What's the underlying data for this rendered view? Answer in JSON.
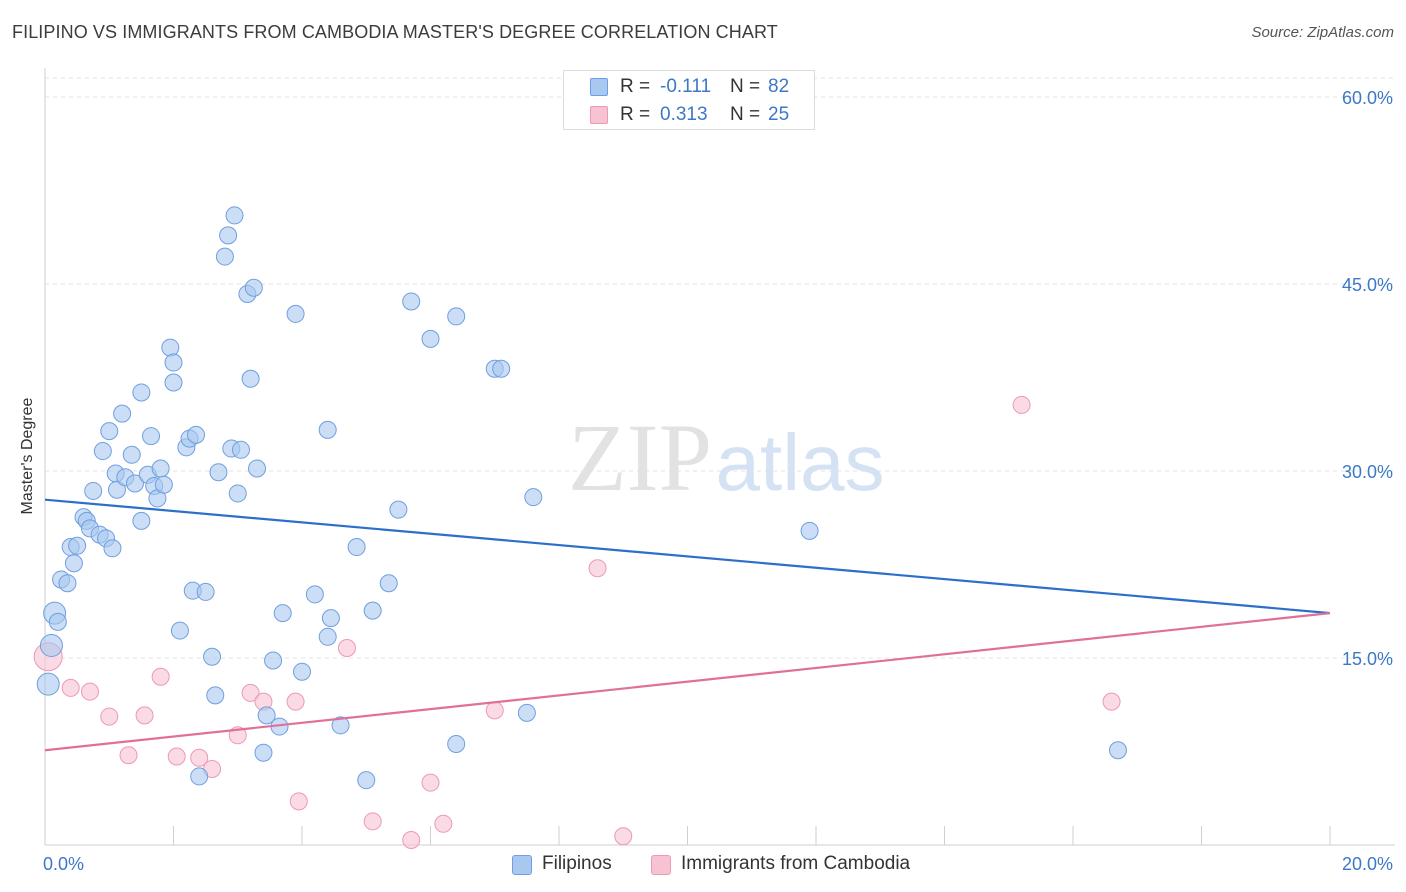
{
  "title": "FILIPINO VS IMMIGRANTS FROM CAMBODIA MASTER'S DEGREE CORRELATION CHART",
  "source": "Source: ZipAtlas.com",
  "watermark": {
    "zip": "ZIP",
    "atlas": "atlas"
  },
  "colors": {
    "filipinos_fill": "#a9c8f0",
    "filipinos_stroke": "#6f9fe0",
    "filipinos_line": "#2c6fcb",
    "cambodia_fill": "#f7c3d3",
    "cambodia_stroke": "#ef98b4",
    "cambodia_line": "#e0709a",
    "tick_label": "#3d78c6",
    "grid": "#e3e3e3"
  },
  "legend_top": {
    "rows": [
      {
        "r_label": "R =",
        "r_value": "-0.111",
        "n_label": "N =",
        "n_value": "82"
      },
      {
        "r_label": "R =",
        "r_value": "0.313",
        "n_label": "N =",
        "n_value": "25"
      }
    ]
  },
  "legend_bottom": {
    "series": [
      "Filipinos",
      "Immigrants from Cambodia"
    ]
  },
  "chart_data": {
    "type": "scatter",
    "title": "FILIPINO VS IMMIGRANTS FROM CAMBODIA MASTER'S DEGREE CORRELATION CHART",
    "xlabel": "",
    "ylabel": "Master's Degree",
    "xlim": [
      0,
      20
    ],
    "ylim": [
      0,
      60
    ],
    "x_ticks": [
      "0.0%",
      "20.0%"
    ],
    "y_ticks": [
      {
        "value": 15,
        "label": "15.0%"
      },
      {
        "value": 30,
        "label": "30.0%"
      },
      {
        "value": 45,
        "label": "45.0%"
      },
      {
        "value": 60,
        "label": "60.0%"
      }
    ],
    "grid": true,
    "legend_position": "top-center",
    "series": [
      {
        "name": "Filipinos",
        "trend": {
          "x": [
            0,
            20
          ],
          "y": [
            27.7,
            18.6
          ]
        },
        "points": [
          [
            0.05,
            12.9
          ],
          [
            0.1,
            16.0
          ],
          [
            0.15,
            18.6
          ],
          [
            0.2,
            17.9
          ],
          [
            0.25,
            21.3
          ],
          [
            0.35,
            21.0
          ],
          [
            0.4,
            23.9
          ],
          [
            0.45,
            22.6
          ],
          [
            0.5,
            24.0
          ],
          [
            0.6,
            26.3
          ],
          [
            0.65,
            26.0
          ],
          [
            0.7,
            25.4
          ],
          [
            0.75,
            28.4
          ],
          [
            0.85,
            24.9
          ],
          [
            0.9,
            31.6
          ],
          [
            0.95,
            24.6
          ],
          [
            1.0,
            33.2
          ],
          [
            1.05,
            23.8
          ],
          [
            1.1,
            29.8
          ],
          [
            1.12,
            28.5
          ],
          [
            1.2,
            34.6
          ],
          [
            1.25,
            29.5
          ],
          [
            1.35,
            31.3
          ],
          [
            1.4,
            29.0
          ],
          [
            1.5,
            26.0
          ],
          [
            1.5,
            36.3
          ],
          [
            1.6,
            29.7
          ],
          [
            1.65,
            32.8
          ],
          [
            1.7,
            28.8
          ],
          [
            1.75,
            27.8
          ],
          [
            1.8,
            30.2
          ],
          [
            1.85,
            28.9
          ],
          [
            1.95,
            39.9
          ],
          [
            2.0,
            37.1
          ],
          [
            2.0,
            38.7
          ],
          [
            2.1,
            17.2
          ],
          [
            2.2,
            31.9
          ],
          [
            2.25,
            32.6
          ],
          [
            2.3,
            20.4
          ],
          [
            2.35,
            32.9
          ],
          [
            2.5,
            20.3
          ],
          [
            2.6,
            15.1
          ],
          [
            2.65,
            12.0
          ],
          [
            2.7,
            29.9
          ],
          [
            2.8,
            47.2
          ],
          [
            2.85,
            48.9
          ],
          [
            2.9,
            31.8
          ],
          [
            2.95,
            50.5
          ],
          [
            3.0,
            28.2
          ],
          [
            3.05,
            31.7
          ],
          [
            3.15,
            44.2
          ],
          [
            3.2,
            37.4
          ],
          [
            3.25,
            44.7
          ],
          [
            3.3,
            30.2
          ],
          [
            3.4,
            7.4
          ],
          [
            3.45,
            10.4
          ],
          [
            3.55,
            14.8
          ],
          [
            3.65,
            9.5
          ],
          [
            3.7,
            18.6
          ],
          [
            3.9,
            42.6
          ],
          [
            4.0,
            13.9
          ],
          [
            4.2,
            20.1
          ],
          [
            4.4,
            33.3
          ],
          [
            4.4,
            16.7
          ],
          [
            4.45,
            18.2
          ],
          [
            4.6,
            9.6
          ],
          [
            4.85,
            23.9
          ],
          [
            5.0,
            5.2
          ],
          [
            5.1,
            18.8
          ],
          [
            5.35,
            21.0
          ],
          [
            5.5,
            26.9
          ],
          [
            5.7,
            43.6
          ],
          [
            6.0,
            40.6
          ],
          [
            6.4,
            42.4
          ],
          [
            6.4,
            8.1
          ],
          [
            7.0,
            38.2
          ],
          [
            7.1,
            38.2
          ],
          [
            7.5,
            10.6
          ],
          [
            7.6,
            27.9
          ],
          [
            11.9,
            25.2
          ],
          [
            16.7,
            7.6
          ],
          [
            2.4,
            5.5
          ]
        ]
      },
      {
        "name": "Immigrants from Cambodia",
        "trend": {
          "x": [
            0,
            20
          ],
          "y": [
            7.6,
            18.6
          ]
        },
        "points": [
          [
            0.05,
            15.1
          ],
          [
            0.4,
            12.6
          ],
          [
            0.7,
            12.3
          ],
          [
            1.0,
            10.3
          ],
          [
            1.3,
            7.2
          ],
          [
            1.55,
            10.4
          ],
          [
            1.8,
            13.5
          ],
          [
            2.05,
            7.1
          ],
          [
            2.4,
            7.0
          ],
          [
            2.6,
            6.1
          ],
          [
            3.0,
            8.8
          ],
          [
            3.2,
            12.2
          ],
          [
            3.4,
            11.5
          ],
          [
            3.9,
            11.5
          ],
          [
            3.95,
            3.5
          ],
          [
            4.7,
            15.8
          ],
          [
            5.1,
            1.9
          ],
          [
            5.7,
            0.4
          ],
          [
            6.0,
            5.0
          ],
          [
            6.2,
            1.7
          ],
          [
            7.0,
            10.8
          ],
          [
            8.6,
            22.2
          ],
          [
            9.0,
            0.7
          ],
          [
            15.2,
            35.3
          ],
          [
            16.6,
            11.5
          ]
        ]
      }
    ]
  }
}
